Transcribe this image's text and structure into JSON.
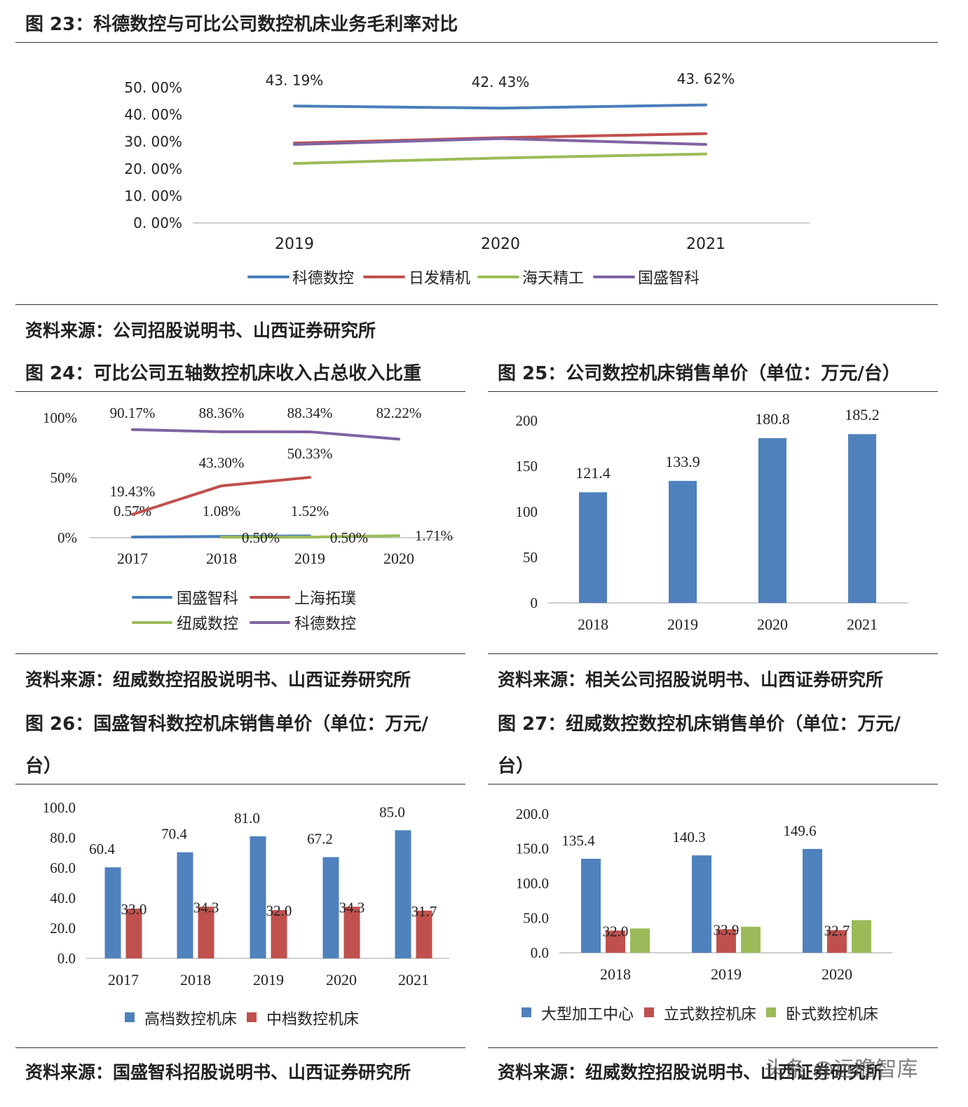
{
  "figures": {
    "fig23": {
      "title": "图 23：科德数控与可比公司数控机床业务毛利率对比",
      "source": "资料来源：公司招股说明书、山西证券研究所"
    },
    "fig24": {
      "title": "图 24：可比公司五轴数控机床收入占总收入比重",
      "source": "资料来源：纽威数控招股说明书、山西证券研究所"
    },
    "fig25": {
      "title": "图 25：公司数控机床销售单价（单位：万元/台）",
      "source": "资料来源：相关公司招股说明书、山西证券研究所"
    },
    "fig26": {
      "title_line1": "图 26：国盛智科数控机床销售单价（单位：万元/",
      "title_line2": "台）",
      "source": "资料来源：国盛智科招股说明书、山西证券研究所"
    },
    "fig27": {
      "title_line1": "图 27：纽威数控数控机床销售单价（单位：万元/",
      "title_line2": "台）",
      "source": "资料来源：纽威数控招股说明书、山西证券研究所"
    }
  },
  "watermark": "头条 @远瞻智库",
  "chart_data": [
    {
      "id": "fig23",
      "type": "line",
      "categories": [
        "2019",
        "2020",
        "2021"
      ],
      "y_ticks": [
        "50. 00%",
        "40. 00%",
        "30. 00%",
        "20. 00%",
        "10. 00%",
        "0. 00%"
      ],
      "ylim": [
        0,
        50
      ],
      "legend": "bottom",
      "series": [
        {
          "name": "科德数控",
          "color": "#4a7ebb",
          "values": [
            43.19,
            42.43,
            43.62
          ],
          "labels": [
            "43. 19%",
            "42. 43%",
            "43. 62%"
          ]
        },
        {
          "name": "日发精机",
          "color": "#c0504d",
          "values": [
            29.5,
            31.5,
            33.0
          ]
        },
        {
          "name": "海天精工",
          "color": "#9bbb59",
          "values": [
            22.0,
            24.0,
            25.5
          ]
        },
        {
          "name": "国盛智科",
          "color": "#8064a2",
          "values": [
            29.0,
            31.2,
            29.0
          ]
        }
      ]
    },
    {
      "id": "fig24",
      "type": "line",
      "categories": [
        "2017",
        "2018",
        "2019",
        "2020"
      ],
      "y_ticks": [
        "100%",
        "50%",
        "0%"
      ],
      "ylim": [
        0,
        100
      ],
      "legend": "bottom",
      "series": [
        {
          "name": "国盛智科",
          "color": "#4a7ebb",
          "values": [
            0.57,
            1.08,
            1.52,
            null
          ],
          "labels": [
            "0.57%",
            "1.08%",
            "1.52%",
            ""
          ]
        },
        {
          "name": "上海拓璞",
          "color": "#c0504d",
          "values": [
            19.43,
            43.3,
            50.33,
            null
          ],
          "labels": [
            "19.43%",
            "43.30%",
            "50.33%",
            ""
          ]
        },
        {
          "name": "纽威数控",
          "color": "#9bbb59",
          "values": [
            null,
            0.5,
            0.5,
            1.71
          ],
          "labels": [
            "",
            "0.50%",
            "0.50%",
            "1.71%"
          ]
        },
        {
          "name": "科德数控",
          "color": "#8064a2",
          "values": [
            90.17,
            88.36,
            88.34,
            82.22
          ],
          "labels": [
            "90.17%",
            "88.36%",
            "88.34%",
            "82.22%"
          ]
        }
      ]
    },
    {
      "id": "fig25",
      "type": "bar",
      "categories": [
        "2018",
        "2019",
        "2020",
        "2021"
      ],
      "y_ticks": [
        "200",
        "150",
        "100",
        "50",
        "0"
      ],
      "ylim": [
        0,
        200
      ],
      "series": [
        {
          "name": "",
          "color": "#4f81bd",
          "values": [
            121.4,
            133.9,
            180.8,
            185.2
          ],
          "labels": [
            "121.4",
            "133.9",
            "180.8",
            "185.2"
          ]
        }
      ]
    },
    {
      "id": "fig26",
      "type": "bar",
      "categories": [
        "2017",
        "2018",
        "2019",
        "2020",
        "2021"
      ],
      "y_ticks": [
        "100.0",
        "80.0",
        "60.0",
        "40.0",
        "20.0",
        "0.0"
      ],
      "ylim": [
        0,
        100
      ],
      "legend": "bottom",
      "series": [
        {
          "name": "高档数控机床",
          "color": "#4f81bd",
          "values": [
            60.4,
            70.4,
            81.0,
            67.2,
            85.0
          ],
          "labels": [
            "60.4",
            "70.4",
            "81.0",
            "67.2",
            "85.0"
          ]
        },
        {
          "name": "中档数控机床",
          "color": "#c0504d",
          "values": [
            33.0,
            34.3,
            32.0,
            34.3,
            31.7
          ],
          "labels": [
            "33.0",
            "34.3",
            "32.0",
            "34.3",
            "31.7"
          ]
        }
      ]
    },
    {
      "id": "fig27",
      "type": "bar",
      "categories": [
        "2018",
        "2019",
        "2020"
      ],
      "y_ticks": [
        "200.0",
        "150.0",
        "100.0",
        "50.0",
        "0.0"
      ],
      "ylim": [
        0,
        200
      ],
      "legend": "bottom",
      "series": [
        {
          "name": "大型加工中心",
          "color": "#4f81bd",
          "values": [
            135.4,
            140.3,
            149.6
          ],
          "labels": [
            "135.4",
            "140.3",
            "149.6"
          ]
        },
        {
          "name": "立式数控机床",
          "color": "#c0504d",
          "values": [
            32.0,
            33.9,
            32.7
          ],
          "labels": [
            "32.0",
            "33.9",
            "32.7"
          ]
        },
        {
          "name": "卧式数控机床",
          "color": "#9bbb59",
          "values": [
            35.0,
            37.5,
            47.0
          ],
          "labels": [
            "",
            "",
            ""
          ]
        }
      ]
    }
  ]
}
